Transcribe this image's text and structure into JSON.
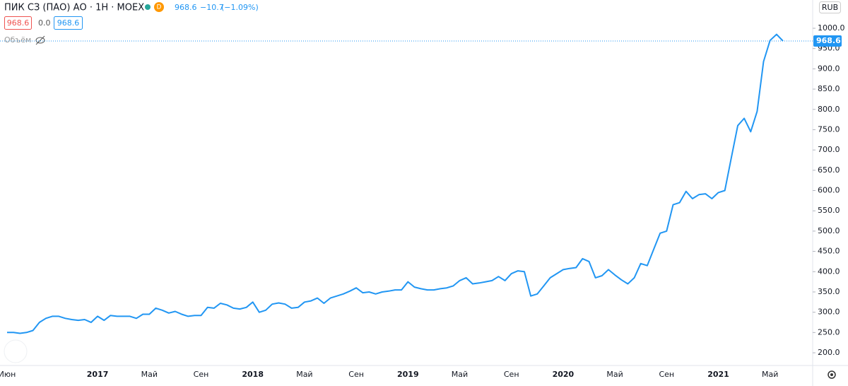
{
  "header": {
    "symbol": "ПИК СЗ (ПАО) АО · 1Н · MOEX",
    "badge": "D",
    "last": "968.6",
    "change": "−10.7",
    "change_pct": "(−1.09%)",
    "bid": "968.6",
    "spread": "0.0",
    "ask": "968.6",
    "volume": "Объём",
    "currency": "RUB"
  },
  "chart_data": {
    "type": "line",
    "color": "#2196f3",
    "categories": [
      "Июн",
      null,
      null,
      null,
      null,
      null,
      null,
      null,
      null,
      null,
      null,
      null,
      null,
      null,
      "2017",
      null,
      null,
      null,
      null,
      null,
      null,
      null,
      "Май",
      null,
      null,
      null,
      null,
      null,
      null,
      null,
      "Сен",
      null,
      null,
      null,
      null,
      null,
      null,
      null,
      "2018",
      null,
      null,
      null,
      null,
      null,
      null,
      null,
      "Май",
      null,
      null,
      null,
      null,
      null,
      null,
      null,
      "Сен",
      null,
      null,
      null,
      null,
      null,
      null,
      null,
      "2019",
      null,
      null,
      null,
      null,
      null,
      null,
      null,
      "Май",
      null,
      null,
      null,
      null,
      null,
      null,
      null,
      "Сен",
      null,
      null,
      null,
      null,
      null,
      null,
      null,
      "2020",
      null,
      null,
      null,
      null,
      null,
      null,
      null,
      "Май",
      null,
      null,
      null,
      null,
      null,
      null,
      null,
      "Сен",
      null,
      null,
      null,
      null,
      null,
      null,
      null,
      "2021",
      null,
      null,
      null,
      null,
      null,
      null,
      null,
      "Май",
      null,
      null
    ],
    "values": [
      250,
      250,
      248,
      250,
      255,
      275,
      285,
      290,
      290,
      285,
      282,
      280,
      282,
      275,
      290,
      280,
      292,
      290,
      290,
      290,
      285,
      295,
      295,
      310,
      305,
      298,
      302,
      295,
      290,
      292,
      292,
      312,
      310,
      322,
      318,
      310,
      308,
      312,
      325,
      300,
      305,
      320,
      323,
      320,
      310,
      312,
      325,
      328,
      335,
      322,
      335,
      340,
      345,
      352,
      360,
      348,
      350,
      345,
      350,
      352,
      355,
      355,
      375,
      362,
      358,
      355,
      355,
      358,
      360,
      365,
      378,
      385,
      370,
      372,
      375,
      378,
      388,
      378,
      395,
      402,
      400,
      340,
      345,
      365,
      385,
      395,
      405,
      408,
      410,
      432,
      425,
      385,
      390,
      405,
      392,
      380,
      370,
      385,
      420,
      415,
      455,
      495,
      500,
      565,
      570,
      598,
      580,
      590,
      592,
      580,
      595,
      600,
      680,
      760,
      778,
      745,
      795,
      918,
      970,
      985,
      968.6
    ],
    "ylim": [
      168.7,
      1069.7
    ],
    "yticks": [
      {
        "value": 200,
        "label": "200.0"
      },
      {
        "value": 250,
        "label": "250.0"
      },
      {
        "value": 300,
        "label": "300.0"
      },
      {
        "value": 350,
        "label": "350.0"
      },
      {
        "value": 400,
        "label": "400.0"
      },
      {
        "value": 450,
        "label": "450.0"
      },
      {
        "value": 500,
        "label": "500.0"
      },
      {
        "value": 550,
        "label": "550.0"
      },
      {
        "value": 600,
        "label": "600.0"
      },
      {
        "value": 650,
        "label": "650.0"
      },
      {
        "value": 700,
        "label": "700.0"
      },
      {
        "value": 750,
        "label": "750.0"
      },
      {
        "value": 800,
        "label": "800.0"
      },
      {
        "value": 850,
        "label": "850.0"
      },
      {
        "value": 900,
        "label": "900.0"
      },
      {
        "value": 950,
        "label": "950.0"
      },
      {
        "value": 1000,
        "label": "1000.0"
      }
    ],
    "grid": false
  }
}
